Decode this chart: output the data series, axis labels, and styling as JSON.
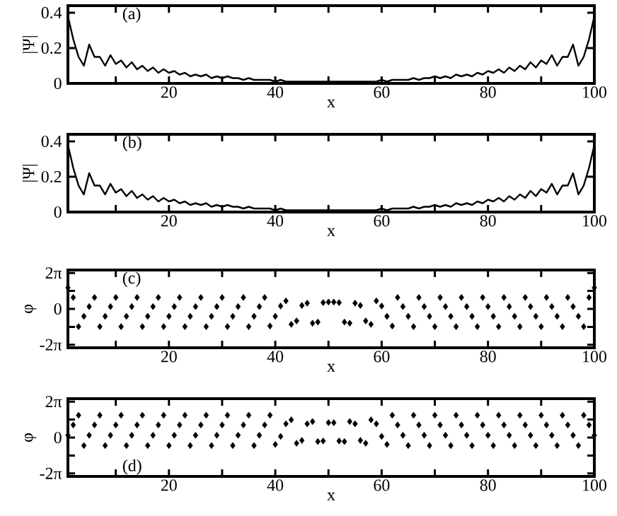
{
  "chart_data": [
    {
      "type": "line",
      "xlabel": "x",
      "ylabel": "|Ψ|",
      "annotations": [
        "(a)"
      ],
      "color": "#000000",
      "xlim": [
        1,
        100
      ],
      "ylim": [
        0,
        0.44
      ],
      "xticks": [
        {
          "value": 10,
          "label": null
        },
        20,
        {
          "value": 30,
          "label": null
        },
        40,
        {
          "value": 50,
          "label": null
        },
        60,
        {
          "value": 70,
          "label": null
        },
        80,
        {
          "value": 90,
          "label": null
        },
        100
      ],
      "yticks": [
        0,
        0.2,
        0.4
      ],
      "x": [
        1,
        2,
        3,
        4,
        5,
        6,
        7,
        8,
        9,
        10,
        11,
        12,
        13,
        14,
        15,
        16,
        17,
        18,
        19,
        20,
        21,
        22,
        23,
        24,
        25,
        26,
        27,
        28,
        29,
        30,
        31,
        32,
        33,
        34,
        35,
        36,
        37,
        38,
        39,
        40,
        41,
        42,
        43,
        44,
        45,
        46,
        47,
        48,
        49,
        50,
        51,
        52,
        53,
        54,
        55,
        56,
        57,
        58,
        59,
        60,
        61,
        62,
        63,
        64,
        65,
        66,
        67,
        68,
        69,
        70,
        71,
        72,
        73,
        74,
        75,
        76,
        77,
        78,
        79,
        80,
        81,
        82,
        83,
        84,
        85,
        86,
        87,
        88,
        89,
        90,
        91,
        92,
        93,
        94,
        95,
        96,
        97,
        98,
        99,
        100
      ],
      "values": [
        0.38,
        0.25,
        0.15,
        0.1,
        0.22,
        0.15,
        0.15,
        0.1,
        0.16,
        0.11,
        0.13,
        0.09,
        0.12,
        0.08,
        0.1,
        0.07,
        0.09,
        0.06,
        0.08,
        0.06,
        0.07,
        0.05,
        0.06,
        0.04,
        0.05,
        0.04,
        0.05,
        0.03,
        0.04,
        0.03,
        0.04,
        0.03,
        0.03,
        0.02,
        0.03,
        0.02,
        0.02,
        0.02,
        0.02,
        0.01,
        0.02,
        0.01,
        0.01,
        0.01,
        0.01,
        0.01,
        0.01,
        0.01,
        0.01,
        0.01,
        0.01,
        0.01,
        0.01,
        0.01,
        0.01,
        0.01,
        0.01,
        0.01,
        0.01,
        0.02,
        0.01,
        0.02,
        0.02,
        0.02,
        0.02,
        0.03,
        0.02,
        0.03,
        0.03,
        0.04,
        0.03,
        0.04,
        0.03,
        0.05,
        0.04,
        0.05,
        0.04,
        0.06,
        0.05,
        0.07,
        0.06,
        0.08,
        0.06,
        0.09,
        0.07,
        0.1,
        0.08,
        0.12,
        0.09,
        0.13,
        0.11,
        0.16,
        0.1,
        0.15,
        0.15,
        0.22,
        0.1,
        0.15,
        0.25,
        0.38
      ]
    },
    {
      "type": "line",
      "xlabel": "x",
      "ylabel": "|Ψ|",
      "annotations": [
        "(b)"
      ],
      "color": "#000000",
      "xlim": [
        1,
        100
      ],
      "ylim": [
        0,
        0.44
      ],
      "xticks": [
        {
          "value": 10,
          "label": null
        },
        20,
        {
          "value": 30,
          "label": null
        },
        40,
        {
          "value": 50,
          "label": null
        },
        60,
        {
          "value": 70,
          "label": null
        },
        80,
        {
          "value": 90,
          "label": null
        },
        100
      ],
      "yticks": [
        0,
        0.2,
        0.4
      ],
      "x": [
        1,
        2,
        3,
        4,
        5,
        6,
        7,
        8,
        9,
        10,
        11,
        12,
        13,
        14,
        15,
        16,
        17,
        18,
        19,
        20,
        21,
        22,
        23,
        24,
        25,
        26,
        27,
        28,
        29,
        30,
        31,
        32,
        33,
        34,
        35,
        36,
        37,
        38,
        39,
        40,
        41,
        42,
        43,
        44,
        45,
        46,
        47,
        48,
        49,
        50,
        51,
        52,
        53,
        54,
        55,
        56,
        57,
        58,
        59,
        60,
        61,
        62,
        63,
        64,
        65,
        66,
        67,
        68,
        69,
        70,
        71,
        72,
        73,
        74,
        75,
        76,
        77,
        78,
        79,
        80,
        81,
        82,
        83,
        84,
        85,
        86,
        87,
        88,
        89,
        90,
        91,
        92,
        93,
        94,
        95,
        96,
        97,
        98,
        99,
        100
      ],
      "values": [
        0.38,
        0.25,
        0.15,
        0.1,
        0.22,
        0.15,
        0.15,
        0.1,
        0.16,
        0.11,
        0.13,
        0.09,
        0.12,
        0.08,
        0.1,
        0.07,
        0.09,
        0.06,
        0.08,
        0.06,
        0.07,
        0.05,
        0.06,
        0.04,
        0.05,
        0.04,
        0.05,
        0.03,
        0.04,
        0.03,
        0.04,
        0.03,
        0.03,
        0.02,
        0.03,
        0.02,
        0.02,
        0.02,
        0.02,
        0.01,
        0.02,
        0.01,
        0.01,
        0.01,
        0.01,
        0.01,
        0.01,
        0.01,
        0.01,
        0.01,
        0.01,
        0.01,
        0.01,
        0.01,
        0.01,
        0.01,
        0.01,
        0.01,
        0.01,
        0.02,
        0.01,
        0.02,
        0.02,
        0.02,
        0.02,
        0.03,
        0.02,
        0.03,
        0.03,
        0.04,
        0.03,
        0.04,
        0.03,
        0.05,
        0.04,
        0.05,
        0.04,
        0.06,
        0.05,
        0.07,
        0.06,
        0.08,
        0.06,
        0.09,
        0.07,
        0.1,
        0.08,
        0.12,
        0.09,
        0.13,
        0.11,
        0.16,
        0.1,
        0.15,
        0.15,
        0.22,
        0.1,
        0.15,
        0.25,
        0.38
      ]
    },
    {
      "type": "scatter",
      "marker": "diamond",
      "xlabel": "x",
      "ylabel": "φ",
      "annotations": [
        "(c)"
      ],
      "color": "#000000",
      "xlim": [
        1,
        100
      ],
      "ylim": [
        -6.8,
        6.8
      ],
      "xticks": [
        {
          "value": 10,
          "label": null
        },
        20,
        {
          "value": 30,
          "label": null
        },
        40,
        {
          "value": 50,
          "label": null
        },
        60,
        {
          "value": 70,
          "label": null
        },
        80,
        {
          "value": 90,
          "label": null
        },
        100
      ],
      "yticks": [
        {
          "value": -6.283,
          "label": "-2π"
        },
        {
          "value": -3.142,
          "label": null
        },
        0,
        {
          "value": 3.142,
          "label": null
        },
        {
          "value": 6.283,
          "label": "2π"
        }
      ],
      "x": [
        1,
        2,
        3,
        4,
        5,
        6,
        7,
        8,
        9,
        10,
        11,
        12,
        13,
        14,
        15,
        16,
        17,
        18,
        19,
        20,
        21,
        22,
        23,
        24,
        25,
        26,
        27,
        28,
        29,
        30,
        31,
        32,
        33,
        34,
        35,
        36,
        37,
        38,
        39,
        40,
        41,
        42,
        43,
        44,
        45,
        46,
        47,
        48,
        49,
        50,
        51,
        52,
        53,
        54,
        55,
        56,
        57,
        58,
        59,
        60,
        61,
        62,
        63,
        64,
        65,
        66,
        67,
        68,
        69,
        70,
        71,
        72,
        73,
        74,
        75,
        76,
        77,
        78,
        79,
        80,
        81,
        82,
        83,
        84,
        85,
        86,
        87,
        88,
        89,
        90,
        91,
        92,
        93,
        94,
        95,
        96,
        97,
        98,
        99,
        100
      ],
      "values": [
        3.7,
        2.0,
        -3.1,
        -1.3,
        0.4,
        2.0,
        -3.1,
        -1.3,
        0.4,
        2.0,
        -3.1,
        -1.3,
        0.4,
        2.0,
        -3.1,
        -1.3,
        0.4,
        2.0,
        -3.1,
        -1.3,
        0.4,
        2.0,
        -3.1,
        -1.3,
        0.4,
        2.0,
        -3.1,
        -1.3,
        0.4,
        2.0,
        -3.1,
        -1.3,
        0.4,
        2.0,
        -3.1,
        -1.3,
        0.4,
        2.0,
        -3.0,
        -1.3,
        0.5,
        1.4,
        -2.7,
        -2.1,
        0.6,
        1.0,
        -2.5,
        -2.3,
        1.1,
        1.2,
        1.2,
        1.1,
        -2.3,
        -2.5,
        1.0,
        0.6,
        -2.1,
        -2.7,
        1.4,
        0.5,
        -1.3,
        -3.0,
        2.0,
        0.4,
        -1.3,
        -3.1,
        2.0,
        0.4,
        -1.3,
        -3.1,
        2.0,
        0.4,
        -1.3,
        -3.1,
        2.0,
        0.4,
        -1.3,
        -3.1,
        2.0,
        0.4,
        -1.3,
        -3.1,
        2.0,
        0.4,
        -1.3,
        -3.1,
        2.0,
        0.4,
        -1.3,
        -3.1,
        2.0,
        0.4,
        -1.3,
        -3.1,
        2.0,
        0.4,
        -1.3,
        -3.1,
        2.0,
        3.7
      ]
    },
    {
      "type": "scatter",
      "marker": "diamond",
      "xlabel": "x",
      "ylabel": "φ",
      "annotations": [
        "(d)"
      ],
      "color": "#000000",
      "xlim": [
        1,
        100
      ],
      "ylim": [
        -6.8,
        6.8
      ],
      "xticks": [
        {
          "value": 10,
          "label": null
        },
        20,
        {
          "value": 30,
          "label": null
        },
        40,
        {
          "value": 50,
          "label": null
        },
        60,
        {
          "value": 70,
          "label": null
        },
        80,
        {
          "value": 90,
          "label": null
        },
        100
      ],
      "yticks": [
        {
          "value": -6.283,
          "label": "-2π"
        },
        {
          "value": -3.142,
          "label": null
        },
        0,
        {
          "value": 3.142,
          "label": null
        },
        {
          "value": 6.283,
          "label": "2π"
        }
      ],
      "x": [
        1,
        2,
        3,
        4,
        5,
        6,
        7,
        8,
        9,
        10,
        11,
        12,
        13,
        14,
        15,
        16,
        17,
        18,
        19,
        20,
        21,
        22,
        23,
        24,
        25,
        26,
        27,
        28,
        29,
        30,
        31,
        32,
        33,
        34,
        35,
        36,
        37,
        38,
        39,
        40,
        41,
        42,
        43,
        44,
        45,
        46,
        47,
        48,
        49,
        50,
        51,
        52,
        53,
        54,
        55,
        56,
        57,
        58,
        59,
        60,
        61,
        62,
        63,
        64,
        65,
        66,
        67,
        68,
        69,
        70,
        71,
        72,
        73,
        74,
        75,
        76,
        77,
        78,
        79,
        80,
        81,
        82,
        83,
        84,
        85,
        86,
        87,
        88,
        89,
        90,
        91,
        92,
        93,
        94,
        95,
        96,
        97,
        98,
        99,
        100
      ],
      "values": [
        0.4,
        2.2,
        3.9,
        -1.4,
        0.4,
        2.2,
        3.9,
        -1.4,
        0.4,
        2.2,
        3.9,
        -1.4,
        0.4,
        2.2,
        3.9,
        -1.4,
        0.4,
        2.2,
        3.9,
        -1.4,
        0.4,
        2.2,
        3.9,
        -1.4,
        0.4,
        2.2,
        3.9,
        -1.4,
        0.4,
        2.2,
        3.9,
        -1.4,
        0.4,
        2.2,
        3.9,
        -1.4,
        0.4,
        2.2,
        3.9,
        -1.2,
        0.2,
        2.4,
        3.1,
        -1.0,
        -0.5,
        2.4,
        2.8,
        -0.7,
        -0.6,
        2.6,
        2.6,
        -0.6,
        -0.7,
        2.8,
        2.4,
        -0.5,
        -1.0,
        3.1,
        2.4,
        0.2,
        -1.2,
        3.9,
        2.2,
        0.4,
        -1.4,
        3.9,
        2.2,
        0.4,
        -1.4,
        3.9,
        2.2,
        0.4,
        -1.4,
        3.9,
        2.2,
        0.4,
        -1.4,
        3.9,
        2.2,
        0.4,
        -1.4,
        3.9,
        2.2,
        0.4,
        -1.4,
        3.9,
        2.2,
        0.4,
        -1.4,
        3.9,
        2.2,
        0.4,
        -1.4,
        3.9,
        2.2,
        0.4,
        -1.4,
        3.9,
        2.2,
        0.4
      ]
    }
  ]
}
